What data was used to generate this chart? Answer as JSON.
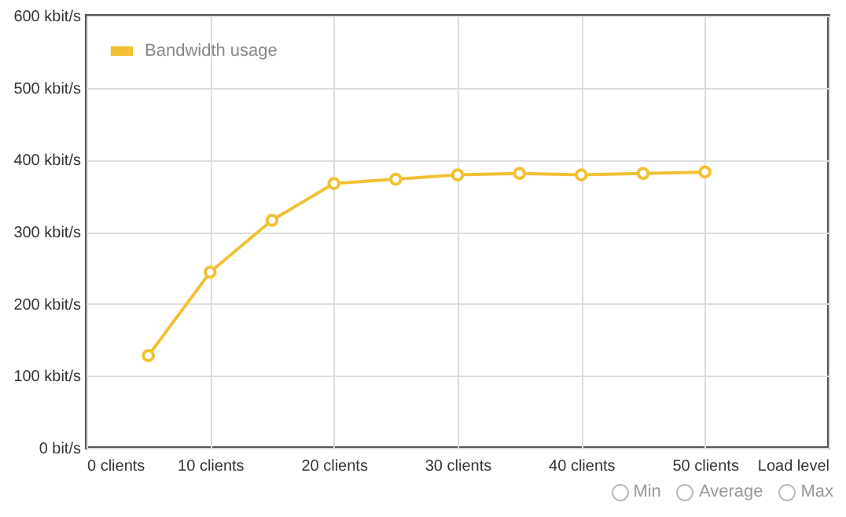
{
  "chart_data": {
    "type": "line",
    "x": [
      5,
      10,
      15,
      20,
      25,
      30,
      35,
      40,
      45,
      50
    ],
    "series": [
      {
        "name": "Bandwidth usage",
        "color": "#f0c133",
        "values": [
          128,
          244,
          316,
          367,
          373,
          379,
          381,
          379,
          381,
          383
        ]
      }
    ],
    "xlim": [
      0,
      60
    ],
    "xticks": [
      {
        "value": 0,
        "label": "0 clients"
      },
      {
        "value": 10,
        "label": "10 clients"
      },
      {
        "value": 20,
        "label": "20 clients"
      },
      {
        "value": 30,
        "label": "30 clients"
      },
      {
        "value": 40,
        "label": "40 clients"
      },
      {
        "value": 50,
        "label": "50 clients"
      },
      {
        "value": 60,
        "label": "Load level"
      }
    ],
    "ylim": [
      0,
      600
    ],
    "yticks": [
      {
        "value": 0,
        "label": "0 bit/s"
      },
      {
        "value": 100,
        "label": "100 kbit/s"
      },
      {
        "value": 200,
        "label": "200 kbit/s"
      },
      {
        "value": 300,
        "label": "300 kbit/s"
      },
      {
        "value": 400,
        "label": "400 kbit/s"
      },
      {
        "value": 500,
        "label": "500 kbit/s"
      },
      {
        "value": 600,
        "label": "600 kbit/s"
      }
    ],
    "grid": true,
    "legend": "top left",
    "marker": "circle",
    "line_style": "solid",
    "annotations": [
      "Min",
      "Average",
      "Max"
    ]
  }
}
